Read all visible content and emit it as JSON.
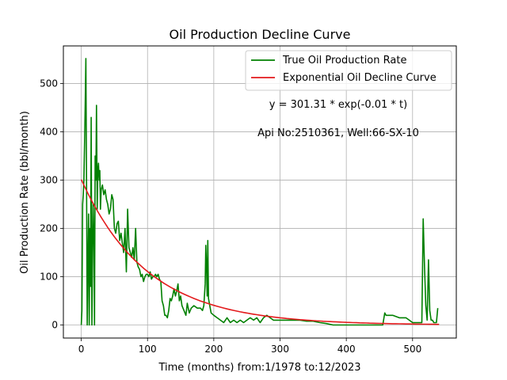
{
  "chart_data": {
    "type": "line",
    "title": "Oil Production Decline Curve",
    "xlabel": "Time (months) from:1/1978 to:12/2023",
    "ylabel": "Oil Production Rate (bbl/month)",
    "xlim": [
      -27,
      566
    ],
    "ylim": [
      -27,
      578
    ],
    "xticks": [
      0,
      100,
      200,
      300,
      400,
      500
    ],
    "yticks": [
      0,
      100,
      200,
      300,
      400,
      500
    ],
    "grid": true,
    "legend_position": "top-right",
    "annotations": [
      "y = 301.31 * exp(-0.01 * t)",
      "Api No:2510361, Well:66-SX-10"
    ],
    "series": [
      {
        "name": "True Oil Production Rate",
        "color": "#008000",
        "x": [
          0,
          1,
          2,
          3,
          4,
          5,
          6,
          7,
          8,
          9,
          10,
          11,
          12,
          13,
          14,
          15,
          16,
          17,
          18,
          19,
          20,
          21,
          22,
          23,
          24,
          25,
          26,
          27,
          28,
          29,
          30,
          32,
          34,
          36,
          38,
          40,
          42,
          44,
          46,
          48,
          50,
          52,
          54,
          56,
          58,
          60,
          62,
          64,
          66,
          68,
          70,
          72,
          74,
          76,
          78,
          80,
          82,
          84,
          86,
          88,
          90,
          92,
          94,
          96,
          98,
          100,
          102,
          104,
          106,
          108,
          110,
          112,
          114,
          116,
          118,
          120,
          122,
          124,
          126,
          128,
          130,
          132,
          134,
          136,
          138,
          140,
          142,
          144,
          146,
          148,
          150,
          152,
          155,
          158,
          160,
          163,
          166,
          170,
          175,
          180,
          183,
          185,
          187,
          188,
          189,
          190,
          191,
          192,
          194,
          196,
          200,
          205,
          210,
          215,
          220,
          225,
          230,
          235,
          240,
          245,
          250,
          255,
          260,
          265,
          270,
          275,
          280,
          285,
          290,
          300,
          310,
          320,
          330,
          340,
          350,
          360,
          370,
          380,
          400,
          420,
          440,
          455,
          458,
          460,
          470,
          480,
          490,
          495,
          500,
          505,
          510,
          512,
          514,
          516,
          518,
          520,
          522,
          524,
          526,
          528,
          530,
          532,
          534,
          536,
          538
        ],
        "y": [
          0,
          30,
          250,
          270,
          300,
          380,
          460,
          552,
          280,
          0,
          120,
          230,
          0,
          200,
          80,
          430,
          0,
          150,
          250,
          180,
          0,
          350,
          300,
          455,
          240,
          320,
          335,
          300,
          320,
          240,
          280,
          290,
          270,
          280,
          260,
          250,
          230,
          240,
          270,
          260,
          200,
          190,
          210,
          215,
          175,
          190,
          170,
          150,
          200,
          110,
          240,
          160,
          150,
          140,
          160,
          135,
          200,
          130,
          120,
          115,
          100,
          105,
          90,
          100,
          105,
          105,
          100,
          110,
          95,
          100,
          100,
          105,
          100,
          105,
          95,
          90,
          50,
          40,
          20,
          20,
          15,
          30,
          55,
          50,
          60,
          75,
          60,
          70,
          85,
          50,
          60,
          40,
          30,
          20,
          45,
          25,
          35,
          40,
          35,
          35,
          30,
          40,
          85,
          165,
          120,
          60,
          175,
          55,
          40,
          25,
          20,
          15,
          10,
          5,
          15,
          5,
          10,
          5,
          10,
          5,
          10,
          15,
          10,
          15,
          5,
          15,
          20,
          15,
          10,
          10,
          10,
          10,
          10,
          8,
          8,
          5,
          3,
          0,
          0,
          0,
          0,
          0,
          25,
          20,
          20,
          15,
          15,
          10,
          5,
          5,
          5,
          5,
          5,
          220,
          120,
          40,
          10,
          135,
          30,
          10,
          10,
          5,
          5,
          5,
          35
        ]
      },
      {
        "name": "Exponential Oil Decline Curve",
        "color": "#e31a1c",
        "a": 301.31,
        "b": -0.01,
        "x_range": [
          0,
          540
        ]
      }
    ]
  }
}
